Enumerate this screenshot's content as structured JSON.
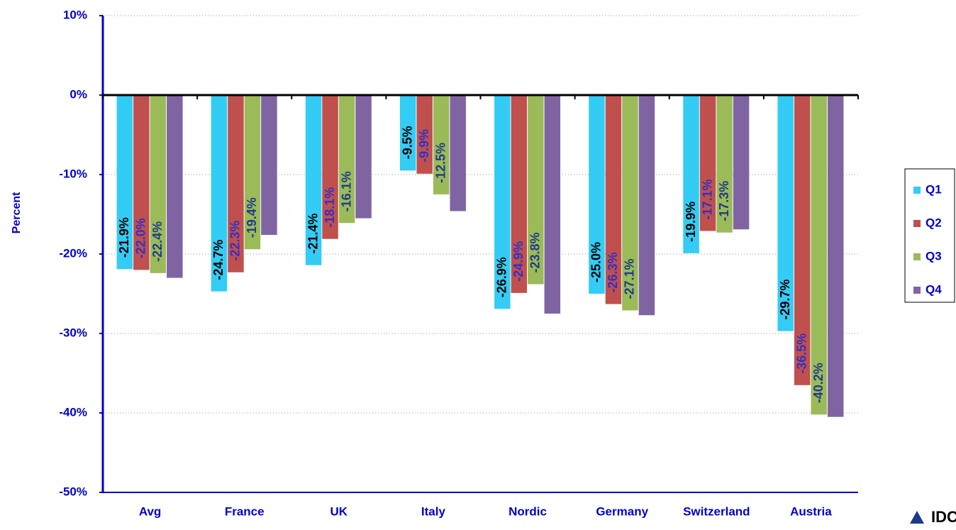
{
  "chart_data": {
    "type": "bar",
    "y_label": "Percent",
    "categories": [
      "Avg",
      "France",
      "UK",
      "Italy",
      "Nordic",
      "Germany",
      "Switzerland",
      "Austria"
    ],
    "series": [
      {
        "name": "Q1",
        "color": "#33ccf5",
        "label_color": "#000000",
        "values": [
          -21.9,
          -24.7,
          -21.4,
          -9.5,
          -26.9,
          -25.0,
          -19.9,
          -29.7
        ],
        "value_labels": [
          "-21.9%",
          "-24.7%",
          "-21.4%",
          "-9.5%",
          "-26.9%",
          "-25.0%",
          "-19.9%",
          "-29.7%"
        ]
      },
      {
        "name": "Q2",
        "color": "#c0504d",
        "label_color": "#3030c8",
        "values": [
          -22.0,
          -22.3,
          -18.1,
          -9.9,
          -24.9,
          -26.3,
          -17.1,
          -36.5
        ],
        "value_labels": [
          "-22.0%",
          "-22.3%",
          "-18.1%",
          "-9.9%",
          "-24.9%",
          "-26.3%",
          "-17.1%",
          "-36.5%"
        ]
      },
      {
        "name": "Q3",
        "color": "#9bbb59",
        "label_color": "#1f3a8c",
        "values": [
          -22.4,
          -19.4,
          -16.1,
          -12.5,
          -23.8,
          -27.1,
          -17.3,
          -40.2
        ],
        "value_labels": [
          "-22.4%",
          "-19.4%",
          "-16.1%",
          "-12.5%",
          "-23.8%",
          "-27.1%",
          "-17.3%",
          "-40.2%"
        ]
      },
      {
        "name": "Q4",
        "color": "#8064a2",
        "values": [
          -23.0,
          -17.6,
          -15.5,
          -14.6,
          -27.5,
          -27.7,
          -16.9,
          -40.5
        ]
      }
    ],
    "ylim": [
      -50,
      10
    ],
    "yticks": [
      {
        "value": -50,
        "label": "-50%"
      },
      {
        "value": -40,
        "label": "-40%"
      },
      {
        "value": -30,
        "label": "-30%"
      },
      {
        "value": -20,
        "label": "-20%"
      },
      {
        "value": -10,
        "label": "-10%"
      },
      {
        "value": 0,
        "label": "0%"
      },
      {
        "value": 10,
        "label": "10%"
      }
    ],
    "grid": true,
    "legend": "right",
    "logo": "IDC"
  }
}
